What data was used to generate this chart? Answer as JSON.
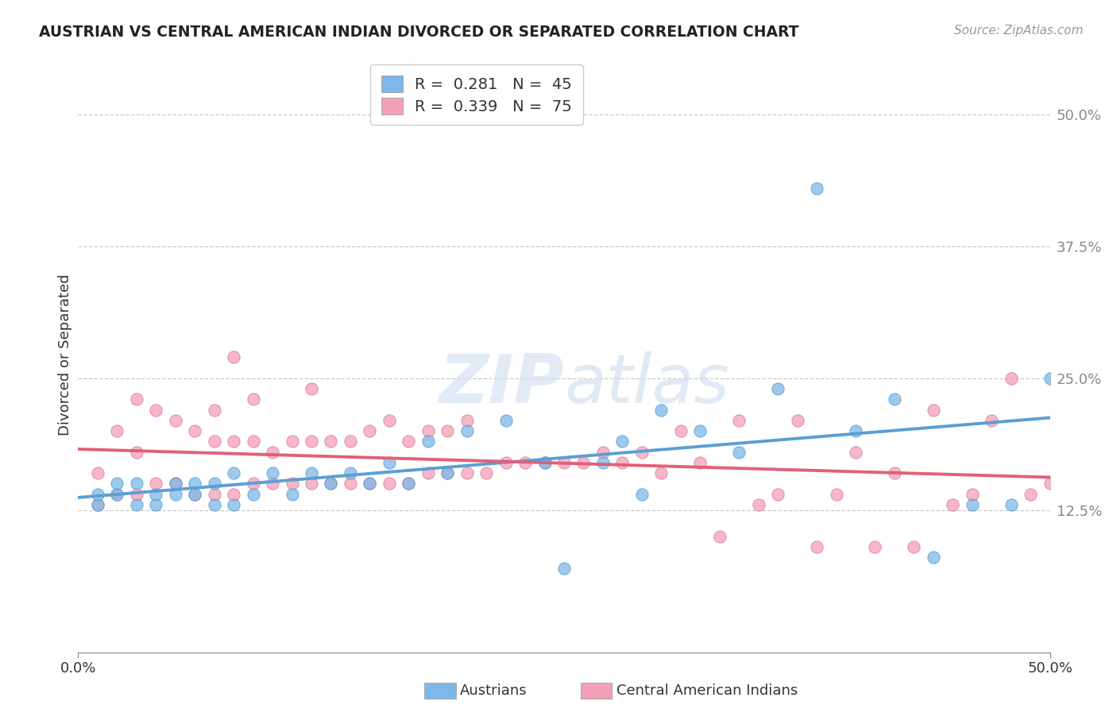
{
  "title": "AUSTRIAN VS CENTRAL AMERICAN INDIAN DIVORCED OR SEPARATED CORRELATION CHART",
  "source": "Source: ZipAtlas.com",
  "ylabel": "Divorced or Separated",
  "ytick_vals": [
    0.125,
    0.25,
    0.375,
    0.5
  ],
  "ytick_labels": [
    "12.5%",
    "25.0%",
    "37.5%",
    "50.0%"
  ],
  "xlim": [
    0.0,
    0.5
  ],
  "ylim": [
    -0.01,
    0.555
  ],
  "austrians_color": "#7DB8E8",
  "austrians_edge": "#5A9FD4",
  "central_american_color": "#F4A0B8",
  "central_american_edge": "#E07898",
  "trend_austrians_color": "#5A9FD4",
  "trend_central_color": "#E0607A",
  "legend_label1": "Austrians",
  "legend_label2": "Central American Indians",
  "watermark": "ZIPAtlas",
  "aus_x": [
    0.01,
    0.01,
    0.02,
    0.02,
    0.03,
    0.03,
    0.04,
    0.04,
    0.05,
    0.05,
    0.06,
    0.06,
    0.07,
    0.07,
    0.08,
    0.08,
    0.09,
    0.1,
    0.11,
    0.12,
    0.13,
    0.14,
    0.15,
    0.16,
    0.17,
    0.18,
    0.19,
    0.2,
    0.22,
    0.24,
    0.25,
    0.27,
    0.28,
    0.29,
    0.3,
    0.32,
    0.34,
    0.36,
    0.38,
    0.4,
    0.42,
    0.44,
    0.46,
    0.48,
    0.5
  ],
  "aus_y": [
    0.13,
    0.14,
    0.14,
    0.15,
    0.13,
    0.15,
    0.13,
    0.14,
    0.14,
    0.15,
    0.14,
    0.15,
    0.13,
    0.15,
    0.13,
    0.16,
    0.14,
    0.16,
    0.14,
    0.16,
    0.15,
    0.16,
    0.15,
    0.17,
    0.15,
    0.19,
    0.16,
    0.2,
    0.21,
    0.17,
    0.07,
    0.17,
    0.19,
    0.14,
    0.22,
    0.2,
    0.18,
    0.24,
    0.43,
    0.2,
    0.23,
    0.08,
    0.13,
    0.13,
    0.25
  ],
  "cen_x": [
    0.01,
    0.01,
    0.02,
    0.02,
    0.03,
    0.03,
    0.03,
    0.04,
    0.04,
    0.05,
    0.05,
    0.06,
    0.06,
    0.07,
    0.07,
    0.07,
    0.08,
    0.08,
    0.08,
    0.09,
    0.09,
    0.09,
    0.1,
    0.1,
    0.11,
    0.11,
    0.12,
    0.12,
    0.12,
    0.13,
    0.13,
    0.14,
    0.14,
    0.15,
    0.15,
    0.16,
    0.16,
    0.17,
    0.17,
    0.18,
    0.18,
    0.19,
    0.19,
    0.2,
    0.2,
    0.21,
    0.22,
    0.23,
    0.24,
    0.25,
    0.26,
    0.27,
    0.28,
    0.29,
    0.3,
    0.31,
    0.32,
    0.33,
    0.34,
    0.35,
    0.36,
    0.37,
    0.38,
    0.39,
    0.4,
    0.41,
    0.42,
    0.43,
    0.44,
    0.45,
    0.46,
    0.47,
    0.48,
    0.49,
    0.5
  ],
  "cen_y": [
    0.13,
    0.16,
    0.14,
    0.2,
    0.14,
    0.18,
    0.23,
    0.15,
    0.22,
    0.15,
    0.21,
    0.14,
    0.2,
    0.14,
    0.19,
    0.22,
    0.14,
    0.19,
    0.27,
    0.15,
    0.19,
    0.23,
    0.15,
    0.18,
    0.15,
    0.19,
    0.15,
    0.19,
    0.24,
    0.15,
    0.19,
    0.15,
    0.19,
    0.15,
    0.2,
    0.15,
    0.21,
    0.15,
    0.19,
    0.16,
    0.2,
    0.16,
    0.2,
    0.16,
    0.21,
    0.16,
    0.17,
    0.17,
    0.17,
    0.17,
    0.17,
    0.18,
    0.17,
    0.18,
    0.16,
    0.2,
    0.17,
    0.1,
    0.21,
    0.13,
    0.14,
    0.21,
    0.09,
    0.14,
    0.18,
    0.09,
    0.16,
    0.09,
    0.22,
    0.13,
    0.14,
    0.21,
    0.25,
    0.14,
    0.15
  ]
}
